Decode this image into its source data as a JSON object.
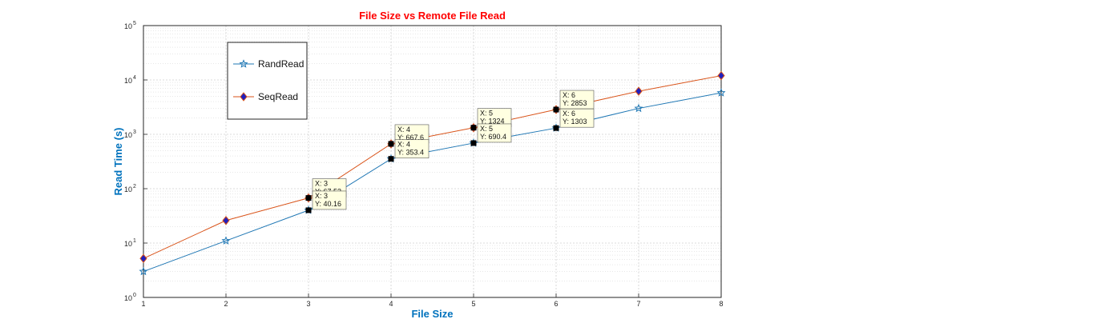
{
  "chart_data": {
    "type": "line",
    "title": "File Size vs Remote File Read",
    "xlabel": "File Size",
    "ylabel": "Read Time (s)",
    "x": [
      1,
      2,
      3,
      4,
      5,
      6,
      7,
      8
    ],
    "xlim": [
      1,
      8
    ],
    "ylim": [
      1,
      100000
    ],
    "yscale": "log",
    "x_tick_labels": [
      "1",
      "2",
      "3",
      "4",
      "5",
      "6",
      "7",
      "8"
    ],
    "y_tick_labels": [
      {
        "base": "10",
        "exp": "0"
      },
      {
        "base": "10",
        "exp": "1"
      },
      {
        "base": "10",
        "exp": "2"
      },
      {
        "base": "10",
        "exp": "3"
      },
      {
        "base": "10",
        "exp": "4"
      },
      {
        "base": "10",
        "exp": "5"
      }
    ],
    "grid": true,
    "legend_position": "top-left",
    "series": [
      {
        "name": "RandRead",
        "values": [
          3,
          11,
          40.16,
          353.4,
          690.4,
          1303,
          3000,
          5800
        ],
        "color": "#1f77b4",
        "marker": "pentagram"
      },
      {
        "name": "SeqRead",
        "values": [
          5.2,
          26,
          67.5,
          667.6,
          1324,
          2853,
          6200,
          12000
        ],
        "color": "#d95319",
        "marker": "diamond"
      }
    ],
    "datatips": [
      {
        "x": 3,
        "y": 67.5,
        "lines": [
          "X: 3",
          "Y: 67.53"
        ]
      },
      {
        "x": 3,
        "y": 40.16,
        "lines": [
          "X: 3",
          "Y: 40.16"
        ]
      },
      {
        "x": 4,
        "y": 667.6,
        "lines": [
          "X: 4",
          "Y: 667.6"
        ]
      },
      {
        "x": 4,
        "y": 353.4,
        "lines": [
          "X: 4",
          "Y: 353.4"
        ]
      },
      {
        "x": 5,
        "y": 1324,
        "lines": [
          "X: 5",
          "Y: 1324"
        ]
      },
      {
        "x": 5,
        "y": 690.4,
        "lines": [
          "X: 5",
          "Y: 690.4"
        ]
      },
      {
        "x": 6,
        "y": 2853,
        "lines": [
          "X: 6",
          "Y: 2853"
        ]
      },
      {
        "x": 6,
        "y": 1303,
        "lines": [
          "X: 6",
          "Y: 1303"
        ]
      }
    ],
    "colors": {
      "title": "#ff0000",
      "axis_label": "#0072bd",
      "marker_fill_seq": "#1f1fbf",
      "datatip_bg": "#ffffe1"
    }
  }
}
